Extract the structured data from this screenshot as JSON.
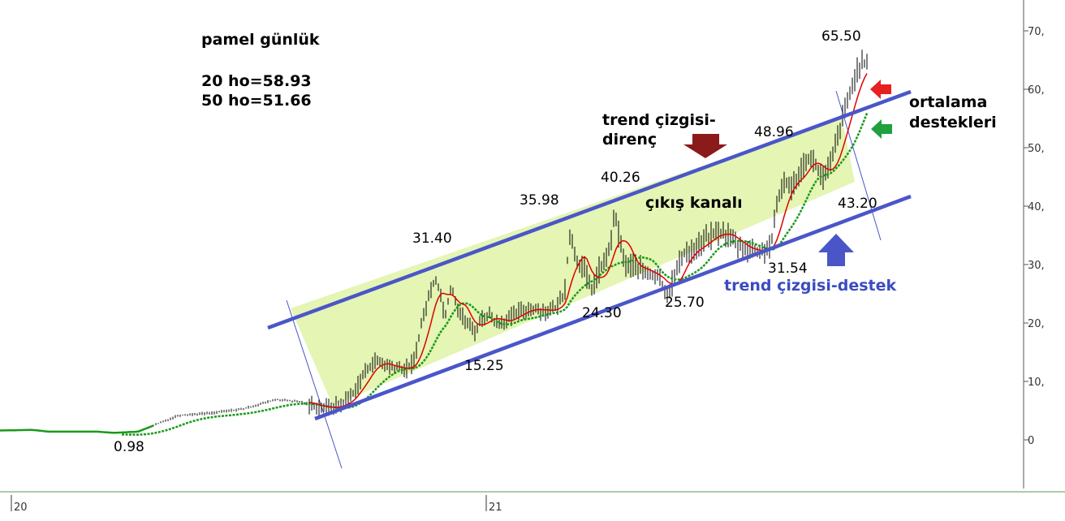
{
  "chart_data": {
    "type": "line",
    "title": "pamel günlük",
    "info_lines": [
      "20 ho=58.93",
      "50 ho=51.66"
    ],
    "y_ticks": [
      "70,",
      "60,",
      "50,",
      "40,",
      "30,",
      "20,",
      "10,",
      "0"
    ],
    "ylim": [
      -5,
      73
    ],
    "x_ticks": [
      "20",
      "21"
    ],
    "grid": false,
    "price_label_values": [
      "0.98",
      "15.25",
      "31.40",
      "24.30",
      "35.98",
      "40.26",
      "25.70",
      "48.96",
      "31.54",
      "43.20",
      "65.50"
    ],
    "text_annotations": {
      "resistance": [
        "trend çizgisi-",
        "direnç"
      ],
      "channel": "çıkış kanalı",
      "support": "trend çizgisi-destek",
      "averages": [
        "ortalama",
        "destekleri"
      ]
    },
    "series": [
      {
        "name": "20 ho",
        "color": "#e00000"
      },
      {
        "name": "50 ho",
        "color": "#1a9a1a"
      }
    ],
    "colors": {
      "channel_fill": "#e4f5b4",
      "channel_line": "#4a56c8",
      "price": "#000000",
      "resistance_arrow": "#8b1a1a",
      "support_arrow": "#4a56c8",
      "ma20_arrow": "#e82020",
      "ma50_arrow": "#20a040",
      "support_text": "#3b4cc0"
    }
  }
}
